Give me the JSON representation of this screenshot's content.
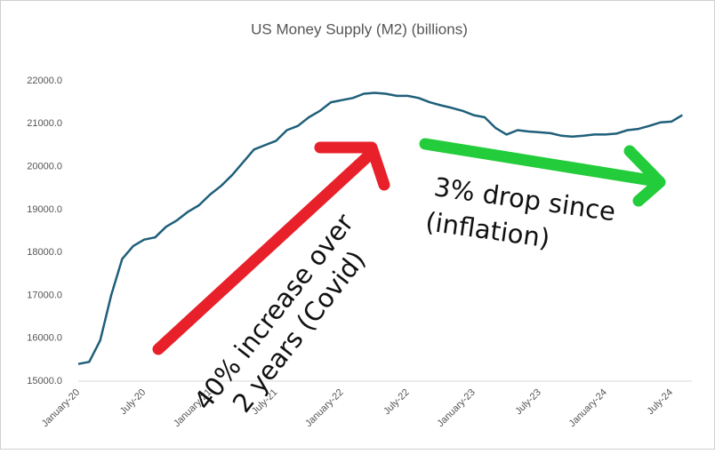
{
  "chart_data": {
    "type": "line",
    "title": "US Money Supply (M2) (billions)",
    "categories": [
      "January-20",
      null,
      null,
      null,
      null,
      null,
      "July-20",
      null,
      null,
      null,
      null,
      null,
      "January-21",
      null,
      null,
      null,
      null,
      null,
      "July-21",
      null,
      null,
      null,
      null,
      null,
      "January-22",
      null,
      null,
      null,
      null,
      null,
      "July-22",
      null,
      null,
      null,
      null,
      null,
      "January-23",
      null,
      null,
      null,
      null,
      null,
      "July-23",
      null,
      null,
      null,
      null,
      null,
      "January-24",
      null,
      null,
      null,
      null,
      null,
      "July-24",
      null
    ],
    "series": [
      {
        "name": "M2",
        "color": "#1f5f7a",
        "values": [
          15400,
          15450,
          15950,
          17000,
          17850,
          18150,
          18300,
          18350,
          18600,
          18750,
          18950,
          19100,
          19350,
          19550,
          19800,
          20100,
          20400,
          20500,
          20600,
          20850,
          20950,
          21150,
          21300,
          21500,
          21550,
          21600,
          21700,
          21720,
          21700,
          21650,
          21650,
          21600,
          21500,
          21430,
          21370,
          21300,
          21200,
          21150,
          20900,
          20750,
          20850,
          20820,
          20800,
          20780,
          20720,
          20700,
          20720,
          20750,
          20750,
          20770,
          20850,
          20880,
          20950,
          21030,
          21050,
          21200
        ]
      }
    ],
    "ylim": [
      15000,
      22000
    ],
    "yticks": [
      {
        "value": 15000,
        "label": "15000.0"
      },
      {
        "value": 16000,
        "label": "16000.0"
      },
      {
        "value": 17000,
        "label": "17000.0"
      },
      {
        "value": 18000,
        "label": "18000.0"
      },
      {
        "value": 19000,
        "label": "19000.0"
      },
      {
        "value": 20000,
        "label": "20000.0"
      },
      {
        "value": 21000,
        "label": "21000.0"
      },
      {
        "value": 22000,
        "label": "22000.0"
      }
    ],
    "grid": false,
    "annotations": [
      {
        "lines": [
          "40% increase over",
          "2 years (Covid)"
        ],
        "color": "#111111"
      },
      {
        "lines": [
          "3% drop since",
          "(inflation)"
        ],
        "color": "#111111"
      }
    ]
  }
}
